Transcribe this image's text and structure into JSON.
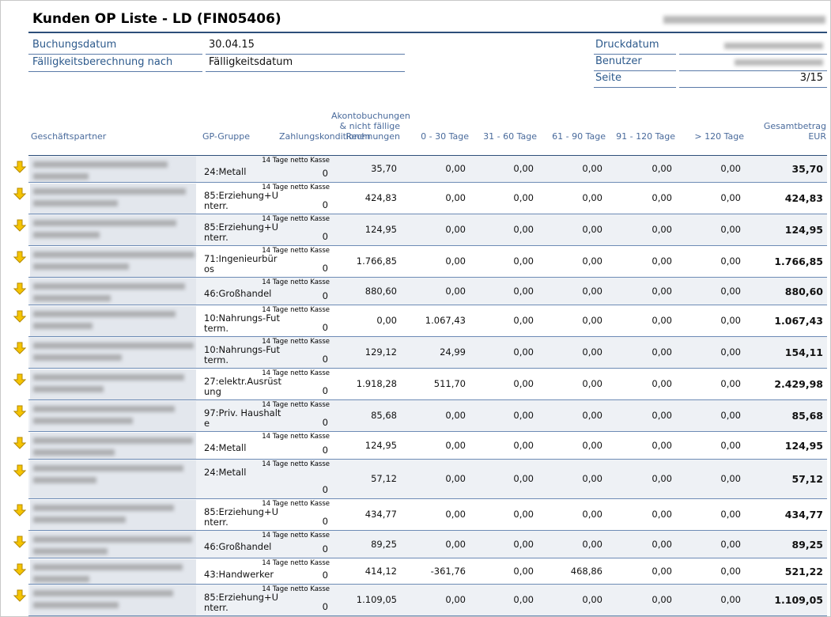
{
  "header": {
    "title": "Kunden OP Liste - LD (FIN05406)"
  },
  "meta_left": [
    {
      "label": "Buchungsdatum",
      "value": "30.04.15"
    },
    {
      "label": "Fälligkeitsberechnung nach",
      "value": "Fälligkeitsdatum"
    }
  ],
  "meta_right": [
    {
      "label": "Druckdatum"
    },
    {
      "label": "Benutzer"
    },
    {
      "label": "Seite",
      "value": "3/15"
    }
  ],
  "table": {
    "columns": [
      "Geschäftspartner",
      "GP-Gruppe",
      "Zahlungskonditionen",
      "Akontobuchungen & nicht fällige Rechnungen",
      "0 - 30 Tage",
      "31 - 60 Tage",
      "61 - 90 Tage",
      "91 - 120 Tage",
      "> 120 Tage",
      "Gesamtbetrag EUR"
    ],
    "rows": [
      [
        "24:Metall",
        "14 Tage netto Kasse",
        "0",
        "35,70",
        "0,00",
        "0,00",
        "0,00",
        "0,00",
        "0,00",
        "35,70"
      ],
      [
        "85:Erziehung+Unterr.",
        "14 Tage netto Kasse",
        "0",
        "424,83",
        "0,00",
        "0,00",
        "0,00",
        "0,00",
        "0,00",
        "424,83"
      ],
      [
        "85:Erziehung+Unterr.",
        "14 Tage netto Kasse",
        "0",
        "124,95",
        "0,00",
        "0,00",
        "0,00",
        "0,00",
        "0,00",
        "124,95"
      ],
      [
        "71:Ingenieurbüros",
        "14 Tage netto Kasse",
        "0",
        "1.766,85",
        "0,00",
        "0,00",
        "0,00",
        "0,00",
        "0,00",
        "1.766,85"
      ],
      [
        "46:Großhandel",
        "14 Tage netto Kasse",
        "0",
        "880,60",
        "0,00",
        "0,00",
        "0,00",
        "0,00",
        "0,00",
        "880,60"
      ],
      [
        "10:Nahrungs-Futterm.",
        "14 Tage netto Kasse",
        "0",
        "0,00",
        "1.067,43",
        "0,00",
        "0,00",
        "0,00",
        "0,00",
        "1.067,43"
      ],
      [
        "10:Nahrungs-Futterm.",
        "14 Tage netto Kasse",
        "0",
        "129,12",
        "24,99",
        "0,00",
        "0,00",
        "0,00",
        "0,00",
        "154,11"
      ],
      [
        "27:elektr.Ausrüstung",
        "14 Tage netto Kasse",
        "0",
        "1.918,28",
        "511,70",
        "0,00",
        "0,00",
        "0,00",
        "0,00",
        "2.429,98"
      ],
      [
        "97:Priv. Haushalte",
        "14 Tage netto Kasse",
        "0",
        "85,68",
        "0,00",
        "0,00",
        "0,00",
        "0,00",
        "0,00",
        "85,68"
      ],
      [
        "24:Metall",
        "14 Tage netto Kasse",
        "0",
        "124,95",
        "0,00",
        "0,00",
        "0,00",
        "0,00",
        "0,00",
        "124,95"
      ],
      [
        "24:Metall",
        "14 Tage netto Kasse",
        "0",
        "57,12",
        "0,00",
        "0,00",
        "0,00",
        "0,00",
        "0,00",
        "57,12"
      ],
      [
        "85:Erziehung+Unterr.",
        "14 Tage netto Kasse",
        "0",
        "434,77",
        "0,00",
        "0,00",
        "0,00",
        "0,00",
        "0,00",
        "434,77"
      ],
      [
        "46:Großhandel",
        "14 Tage netto Kasse",
        "0",
        "89,25",
        "0,00",
        "0,00",
        "0,00",
        "0,00",
        "0,00",
        "89,25"
      ],
      [
        "43:Handwerker",
        "14 Tage netto Kasse",
        "0",
        "414,12",
        "-361,76",
        "0,00",
        "468,86",
        "0,00",
        "0,00",
        "521,22"
      ],
      [
        "85:Erziehung+Unterr.",
        "14 Tage netto Kasse",
        "0",
        "1.109,05",
        "0,00",
        "0,00",
        "0,00",
        "0,00",
        "0,00",
        "1.109,05"
      ]
    ]
  }
}
